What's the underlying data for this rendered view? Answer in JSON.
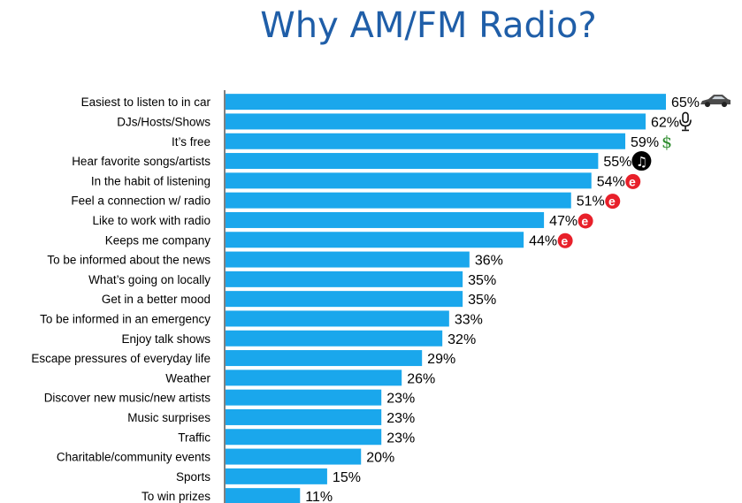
{
  "title": "Why AM/FM Radio?",
  "colors": {
    "title": "#1f5ea8",
    "bar": "#1aa7ec",
    "badge_red": "#e8202a",
    "dollar_green": "#2a8a2a"
  },
  "chart_data": {
    "type": "bar",
    "orientation": "horizontal",
    "title": "Why AM/FM Radio?",
    "xlabel": "",
    "ylabel": "",
    "value_suffix": "%",
    "xlim": [
      0,
      65
    ],
    "grid": false,
    "legend": "none",
    "categories": [
      "Easiest to listen to in car",
      "DJs/Hosts/Shows",
      "It’s free",
      "Hear favorite songs/artists",
      "In the habit of listening",
      "Feel a connection w/ radio",
      "Like to work with radio",
      "Keeps me company",
      "To be informed about the news",
      "What’s going on locally",
      "Get in a better mood",
      "To be informed in an emergency",
      "Enjoy talk shows",
      "Escape pressures of everyday life",
      "Weather",
      "Discover new music/new artists",
      "Music surprises",
      "Traffic",
      "Charitable/community events",
      "Sports",
      "To win prizes"
    ],
    "values": [
      65,
      62,
      59,
      55,
      54,
      51,
      47,
      44,
      36,
      35,
      35,
      33,
      32,
      29,
      26,
      23,
      23,
      23,
      20,
      15,
      11
    ],
    "icons": [
      "car-icon",
      "microphone-icon",
      "dollar-icon",
      "music-note-icon",
      "e-badge-icon",
      "e-badge-icon",
      "e-badge-icon",
      "e-badge-icon",
      "",
      "",
      "",
      "",
      "",
      "",
      "",
      "",
      "",
      "",
      "",
      "",
      ""
    ]
  }
}
